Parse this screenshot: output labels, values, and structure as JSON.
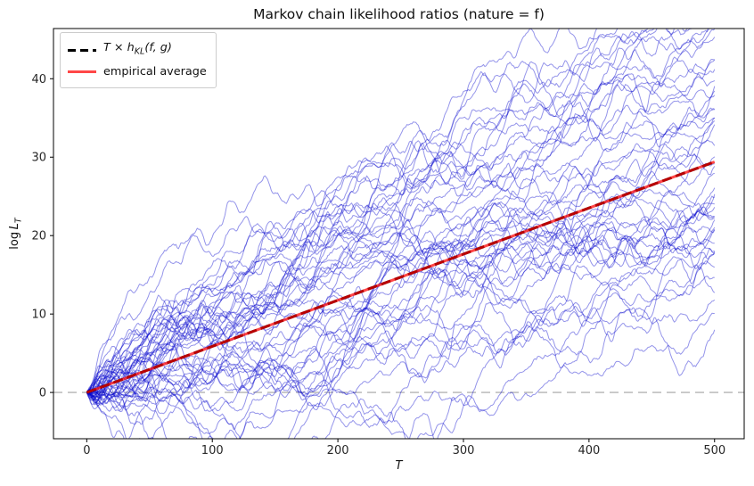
{
  "chart_data": {
    "type": "line",
    "title": "Markov chain likelihood ratios (nature = f)",
    "xlabel": "T",
    "ylabel": "log L_T",
    "xlim": [
      -26.5,
      523.6
    ],
    "ylim": [
      -5.9,
      46.4
    ],
    "x_ticks": [
      0,
      100,
      200,
      300,
      400,
      500
    ],
    "y_ticks": [
      0,
      10,
      20,
      30,
      40
    ],
    "grid": false,
    "legend_position": "upper left",
    "h_kl_slope": 0.0588,
    "series": [
      {
        "name": "T × h_KL(f, g)",
        "x": [
          0,
          500
        ],
        "y": [
          0,
          29.4
        ],
        "color": "#000000",
        "style": "dashed",
        "width": 3
      },
      {
        "name": "empirical average",
        "x": [
          0,
          500
        ],
        "y": [
          0,
          29.4
        ],
        "color": "#ff0000",
        "opacity": 0.72,
        "style": "solid",
        "width": 3
      },
      {
        "name": "zero reference",
        "x": [
          -26.5,
          523.6
        ],
        "y": [
          0,
          0
        ],
        "color": "#b3b3b3",
        "style": "dashed",
        "width": 1.4
      }
    ],
    "trajectories": {
      "description": "individual Markov-chain log-likelihood-ratio sample paths",
      "count": 50,
      "steps": 500,
      "start_value": 0,
      "drift_per_step": 0.0588,
      "noise_sigma": 0.16,
      "noise_ar1": 0.7,
      "seed": 42,
      "end_mean": 29.4,
      "end_range": [
        12.5,
        44
      ],
      "color": "#0000cc",
      "opacity": 0.42,
      "width": 1
    }
  },
  "labels": {
    "ylabel_prefix": "log",
    "ylabel_var": "L",
    "ylabel_sub": "T",
    "xlabel": "T"
  },
  "legend": {
    "items": [
      {
        "pre": "T × h",
        "sub": "KL",
        "post": "(f, g)"
      },
      {
        "label": "empirical average"
      }
    ]
  }
}
